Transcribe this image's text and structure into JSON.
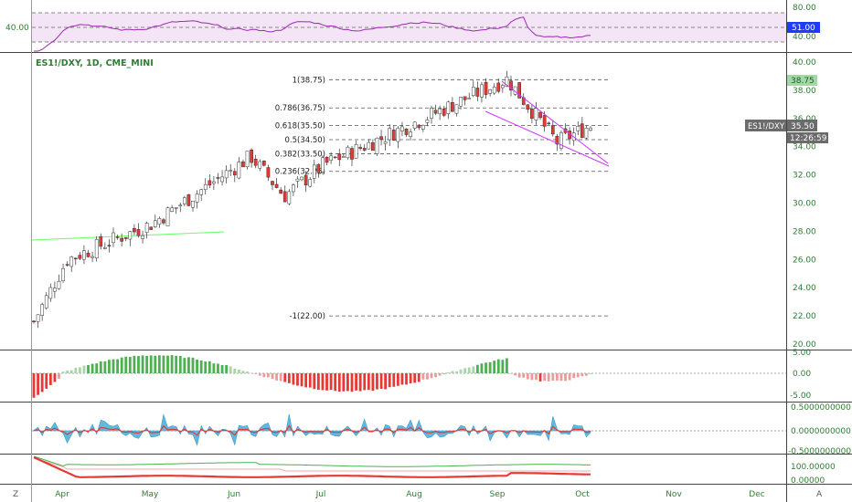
{
  "colors": {
    "up": "#4caf50",
    "down": "#ef5350",
    "candle_up_body": "#ffffff",
    "candle_down_body": "#e53935",
    "wick": "#333333",
    "rsi_line": "#9c27b0",
    "rsi_band": "#f3e5f5",
    "ma_line": "#66ff66",
    "wedge": "#cc33ff",
    "fib": "#555555",
    "axis_text": "#2e7d32",
    "price_tag_bg": "#6b6b6b",
    "rsi_tag_bg": "#1e3cff",
    "level_tag_bg": "#a5d6a7"
  },
  "rsi_panel": {
    "left_label": "40.00",
    "axis_labels": [
      "80.00",
      "60.00",
      "40.00"
    ],
    "current_tag": "51.00"
  },
  "main_panel": {
    "title": "ES1!/DXY, 1D, CME_MINI",
    "price_axis": [
      "40.00",
      "38.00",
      "36.00",
      "34.00",
      "32.00",
      "30.00",
      "28.00",
      "26.00",
      "24.00",
      "22.00",
      "20.00"
    ],
    "fib_levels": [
      {
        "label": "1(38.75)",
        "value": 38.75
      },
      {
        "label": "0.786(36.75)",
        "value": 36.75
      },
      {
        "label": "0.618(35.50)",
        "value": 35.5
      },
      {
        "label": "0.5(34.50)",
        "value": 34.5
      },
      {
        "label": "0.382(33.50)",
        "value": 33.5
      },
      {
        "label": "0.236(32.25)",
        "value": 32.25
      },
      {
        "label": "-1(22.00)",
        "value": 22.0
      }
    ],
    "level_tag": "38.75",
    "symbol_tag": "ES1!/DXY",
    "price_tag": "35.50",
    "countdown": "12:26:59"
  },
  "macd_panel": {
    "axis_labels": [
      "5.00",
      "0.00",
      "-5.00"
    ]
  },
  "osc_panel": {
    "axis_labels": [
      "0.5000000000",
      "0.0000000000",
      "-0.5000000000"
    ]
  },
  "bottom_panel": {
    "axis_labels": [
      "100.00000",
      "0.00000"
    ]
  },
  "time_axis": {
    "months": [
      "Apr",
      "May",
      "Jun",
      "Jul",
      "Aug",
      "Sep",
      "Oct",
      "Nov",
      "Dec"
    ],
    "left_button": "Z",
    "right_button": "A"
  },
  "chart_data": {
    "type": "candlestick",
    "title": "ES1!/DXY, 1D, CME_MINI",
    "ylim": [
      19.5,
      40.5
    ],
    "x_range_months": [
      "Apr",
      "Dec"
    ],
    "close_path_monthly_approx": [
      {
        "month": "Apr",
        "value": 21.6
      },
      {
        "month": "Apr",
        "value": 26.0
      },
      {
        "month": "May",
        "value": 28.5
      },
      {
        "month": "Jun",
        "value": 33.3
      },
      {
        "month": "Jun",
        "value": 30.5
      },
      {
        "month": "Jul",
        "value": 32.7
      },
      {
        "month": "Aug",
        "value": 36.0
      },
      {
        "month": "Aug",
        "value": 38.8
      },
      {
        "month": "Sep",
        "value": 34.3
      },
      {
        "month": "Oct",
        "value": 35.5
      }
    ],
    "rsi": {
      "current": 51.0,
      "ylim": [
        20,
        85
      ]
    },
    "grid": false
  }
}
